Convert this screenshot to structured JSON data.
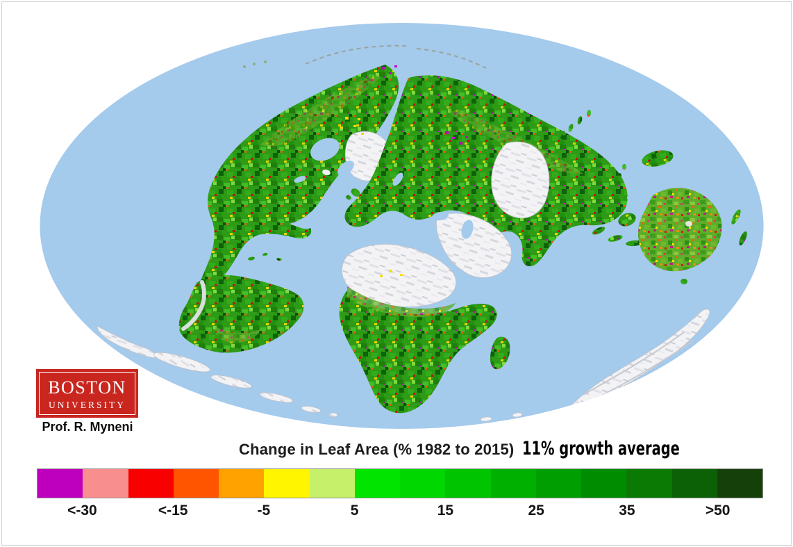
{
  "page": {
    "background": "#ffffff",
    "frame_color": "#cdd1d5"
  },
  "map": {
    "description": "Oblique elliptical world map of change in leaf area 1982 to 2015: vegetated land mottled green with scattered browning patches; deserts and ice sheets shown white",
    "ocean_color": "#A4CAEC",
    "land_color": "#2D9B16",
    "browning_land_color": "#5FAE2A",
    "barren_color": "#F3F3F5"
  },
  "logo": {
    "line1": "BOSTON",
    "line2": "UNIVERSITY",
    "background": "#C9261F",
    "text_color": "#FFFFFF"
  },
  "attribution": "Prof. R. Myneni",
  "title": {
    "main": "Change in Leaf Area (% 1982 to 2015)",
    "annotation": "11% growth average"
  },
  "legend": {
    "border_color": "#8F8F8F",
    "colors": [
      "#BE00BE",
      "#F98E8E",
      "#F80000",
      "#FF5400",
      "#FFA200",
      "#FFF500",
      "#C6F06A",
      "#00E400",
      "#00D600",
      "#00C400",
      "#00B000",
      "#009E00",
      "#008C00",
      "#0A7A04",
      "#0C6006",
      "#15400A"
    ],
    "ticks": [
      "<-30",
      "<-15",
      "-5",
      "5",
      "15",
      "25",
      "35",
      ">50"
    ]
  }
}
